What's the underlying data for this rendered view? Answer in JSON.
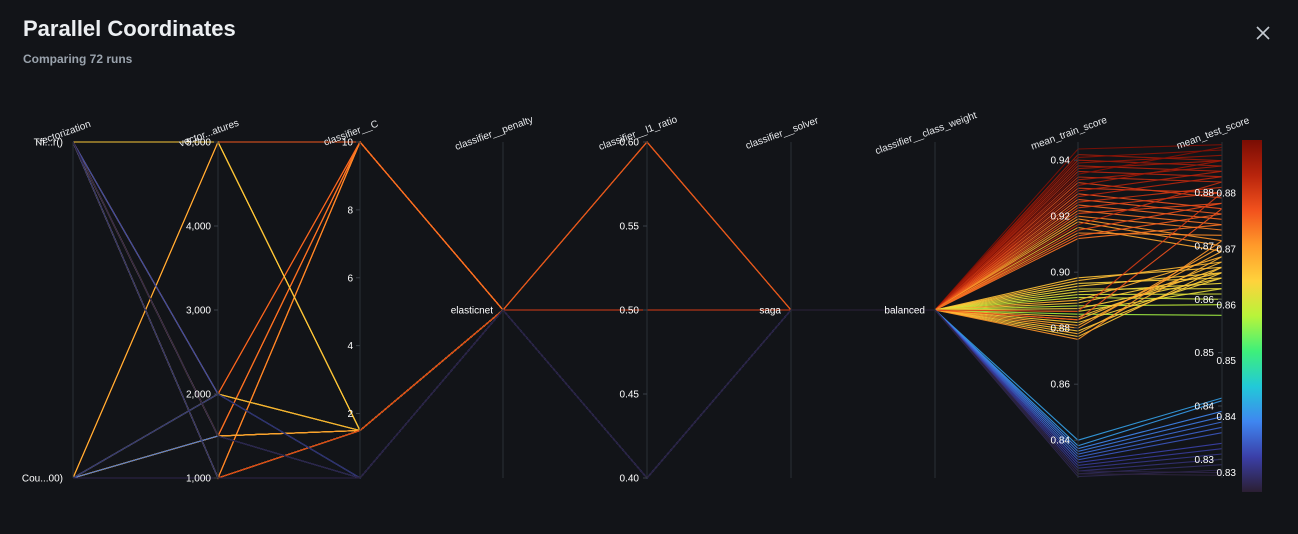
{
  "header": {
    "title": "Parallel Coordinates",
    "subtitle": "Comparing 72 runs"
  },
  "icons": {
    "close": "close-icon"
  },
  "chart_data": {
    "type": "parallel-coordinates",
    "axes": [
      {
        "name": "vectorization",
        "type": "categorical",
        "categories": [
          "Cou...00)",
          "Tfi...r()"
        ]
      },
      {
        "name": "vector...atures",
        "type": "numeric",
        "range": [
          1000,
          5000
        ],
        "ticks": [
          1000,
          2000,
          3000,
          4000,
          5000
        ],
        "tick_labels": [
          "1,000",
          "2,000",
          "3,000",
          "4,000",
          "5,000"
        ]
      },
      {
        "name": "classifier__C",
        "type": "numeric",
        "range": [
          0.1,
          10
        ],
        "ticks": [
          2,
          4,
          6,
          8,
          10
        ],
        "tick_labels": [
          "2",
          "4",
          "6",
          "8",
          "10"
        ]
      },
      {
        "name": "classifier__penalty",
        "type": "categorical",
        "categories": [
          "elasticnet"
        ]
      },
      {
        "name": "classifier__l1_ratio",
        "type": "numeric",
        "range": [
          0.4,
          0.6
        ],
        "ticks": [
          0.4,
          0.45,
          0.5,
          0.55,
          0.6
        ],
        "tick_labels": [
          "0.40",
          "0.45",
          "0.50",
          "0.55",
          "0.60"
        ]
      },
      {
        "name": "classifier__solver",
        "type": "categorical",
        "categories": [
          "saga"
        ]
      },
      {
        "name": "classifier__class_weight",
        "type": "categorical",
        "categories": [
          "balanced"
        ]
      },
      {
        "name": "mean_train_score",
        "type": "numeric",
        "range": [
          0.8265,
          0.9465
        ],
        "ticks": [
          0.84,
          0.86,
          0.88,
          0.9,
          0.92,
          0.94
        ],
        "tick_labels": [
          "0.84",
          "0.86",
          "0.88",
          "0.90",
          "0.92",
          "0.94"
        ]
      },
      {
        "name": "mean_test_score",
        "type": "numeric",
        "range": [
          0.8265,
          0.8895
        ],
        "ticks": [
          0.83,
          0.84,
          0.85,
          0.86,
          0.87,
          0.88
        ],
        "tick_labels": [
          "0.83",
          "0.84",
          "0.85",
          "0.86",
          "0.87",
          "0.88"
        ]
      }
    ],
    "color_by": "mean_test_score",
    "colorscale": [
      "#2b1f33",
      "#3b3fa8",
      "#3f86f0",
      "#22c9d8",
      "#3ef07a",
      "#b8f43a",
      "#ffd23c",
      "#ff9a2a",
      "#f2521d",
      "#b8240c",
      "#7a0d04"
    ],
    "colorbar": {
      "ticks": [
        0.83,
        0.84,
        0.85,
        0.86,
        0.87,
        0.88
      ],
      "tick_labels": [
        "0.83",
        "0.84",
        "0.85",
        "0.86",
        "0.87",
        "0.88"
      ],
      "range": [
        0.8265,
        0.8895
      ]
    },
    "runs": [
      [
        0,
        1000,
        10,
        0,
        0.5,
        0,
        0,
        0.944,
        0.889
      ],
      [
        1,
        5000,
        10,
        0,
        0.5,
        0,
        0,
        0.942,
        0.886
      ],
      [
        0,
        2000,
        10,
        0,
        0.5,
        0,
        0,
        0.941,
        0.888
      ],
      [
        1,
        1000,
        10,
        0,
        0.5,
        0,
        0,
        0.94,
        0.885
      ],
      [
        0,
        5000,
        10,
        0,
        0.5,
        0,
        0,
        0.939,
        0.887
      ],
      [
        1,
        2000,
        10,
        0,
        0.5,
        0,
        0,
        0.938,
        0.884
      ],
      [
        0,
        1500,
        10,
        0,
        0.5,
        0,
        0,
        0.937,
        0.886
      ],
      [
        1,
        1500,
        10,
        0,
        0.5,
        0,
        0,
        0.936,
        0.883
      ],
      [
        0,
        1000,
        10,
        0,
        0.5,
        0,
        0,
        0.935,
        0.8885
      ],
      [
        1,
        5000,
        10,
        0,
        0.5,
        0,
        0,
        0.934,
        0.882
      ],
      [
        0,
        2000,
        10,
        0,
        0.5,
        0,
        0,
        0.933,
        0.885
      ],
      [
        1,
        1000,
        10,
        0,
        0.5,
        0,
        0,
        0.932,
        0.879
      ],
      [
        0,
        5000,
        10,
        0,
        0.5,
        0,
        0,
        0.931,
        0.886
      ],
      [
        1,
        2000,
        10,
        0,
        0.5,
        0,
        0,
        0.93,
        0.88
      ],
      [
        0,
        1500,
        10,
        0,
        0.5,
        0,
        0,
        0.929,
        0.884
      ],
      [
        1,
        1500,
        10,
        0,
        0.5,
        0,
        0,
        0.928,
        0.877
      ],
      [
        0,
        1000,
        10,
        0,
        0.5,
        0,
        0,
        0.927,
        0.883
      ],
      [
        1,
        5000,
        10,
        0,
        0.5,
        0,
        0,
        0.926,
        0.876
      ],
      [
        0,
        2000,
        10,
        0,
        0.5,
        0,
        0,
        0.925,
        0.881
      ],
      [
        1,
        1000,
        10,
        0,
        0.5,
        0,
        0,
        0.924,
        0.875
      ],
      [
        0,
        5000,
        10,
        0,
        0.5,
        0,
        0,
        0.923,
        0.88
      ],
      [
        1,
        2000,
        10,
        0,
        0.5,
        0,
        0,
        0.922,
        0.874
      ],
      [
        0,
        1500,
        10,
        0,
        0.5,
        0,
        0,
        0.921,
        0.878
      ],
      [
        1,
        1500,
        10,
        0,
        0.5,
        0,
        0,
        0.92,
        0.873
      ],
      [
        0,
        1000,
        10,
        0,
        0.5,
        0,
        0,
        0.919,
        0.871
      ],
      [
        1,
        5000,
        1.5,
        0,
        0.6,
        0,
        0,
        0.918,
        0.87
      ],
      [
        0,
        1000,
        1.5,
        0,
        0.6,
        0,
        0,
        0.917,
        0.882
      ],
      [
        1,
        1500,
        1.5,
        0,
        0.6,
        0,
        0,
        0.916,
        0.869
      ],
      [
        0,
        2000,
        1.5,
        0,
        0.6,
        0,
        0,
        0.915,
        0.878
      ],
      [
        1,
        1000,
        10,
        0,
        0.5,
        0,
        0,
        0.914,
        0.872
      ],
      [
        0,
        5000,
        10,
        0,
        0.5,
        0,
        0,
        0.913,
        0.876
      ],
      [
        1,
        1500,
        10,
        0,
        0.5,
        0,
        0,
        0.912,
        0.874
      ],
      [
        0,
        1000,
        1.5,
        0,
        0.5,
        0,
        0,
        0.898,
        0.866
      ],
      [
        1,
        5000,
        1.5,
        0,
        0.5,
        0,
        0,
        0.897,
        0.867
      ],
      [
        0,
        1500,
        1.5,
        0,
        0.5,
        0,
        0,
        0.896,
        0.864
      ],
      [
        1,
        1000,
        1.5,
        0,
        0.5,
        0,
        0,
        0.895,
        0.865
      ],
      [
        0,
        2000,
        1.5,
        0,
        0.5,
        0,
        0,
        0.894,
        0.862
      ],
      [
        1,
        1500,
        1.5,
        0,
        0.5,
        0,
        0,
        0.893,
        0.863
      ],
      [
        0,
        1000,
        1.5,
        0,
        0.5,
        0,
        0,
        0.892,
        0.861
      ],
      [
        1,
        5000,
        1.5,
        0,
        0.5,
        0,
        0,
        0.891,
        0.86
      ],
      [
        0,
        1500,
        1.5,
        0,
        0.5,
        0,
        0,
        0.89,
        0.868
      ],
      [
        1,
        1000,
        1.5,
        0,
        0.5,
        0,
        0,
        0.889,
        0.865
      ],
      [
        0,
        2000,
        1.5,
        0,
        0.5,
        0,
        0,
        0.888,
        0.859
      ],
      [
        1,
        1000,
        1.5,
        0,
        0.5,
        0,
        0,
        0.887,
        0.864
      ],
      [
        0,
        1500,
        1.5,
        0,
        0.5,
        0,
        0,
        0.886,
        0.862
      ],
      [
        1,
        1000,
        1.5,
        0,
        0.5,
        0,
        0,
        0.885,
        0.857
      ],
      [
        0,
        5000,
        1.5,
        0,
        0.5,
        0,
        0,
        0.884,
        0.866
      ],
      [
        1,
        1500,
        1.5,
        0,
        0.5,
        0,
        0,
        0.883,
        0.867
      ],
      [
        0,
        1000,
        1.5,
        0,
        0.5,
        0,
        0,
        0.882,
        0.864
      ],
      [
        1,
        2000,
        1.5,
        0,
        0.5,
        0,
        0,
        0.881,
        0.869
      ],
      [
        0,
        1000,
        1.5,
        0,
        0.5,
        0,
        0,
        0.88,
        0.87
      ],
      [
        1,
        1500,
        1.5,
        0,
        0.5,
        0,
        0,
        0.879,
        0.865
      ],
      [
        0,
        1000,
        1.5,
        0,
        0.5,
        0,
        0,
        0.878,
        0.868
      ],
      [
        1,
        5000,
        1.5,
        0,
        0.5,
        0,
        0,
        0.877,
        0.866
      ],
      [
        0,
        1500,
        1.5,
        0,
        0.5,
        0,
        0,
        0.876,
        0.871
      ],
      [
        1,
        1000,
        1.5,
        0,
        0.5,
        0,
        0,
        0.883,
        0.877
      ],
      [
        0,
        1000,
        1.5,
        0,
        0.5,
        0,
        0,
        0.886,
        0.88
      ],
      [
        1,
        2000,
        0.1,
        0,
        0.4,
        0,
        0,
        0.84,
        0.8415
      ],
      [
        0,
        2000,
        0.1,
        0,
        0.4,
        0,
        0,
        0.838,
        0.841
      ],
      [
        1,
        1000,
        0.1,
        0,
        0.4,
        0,
        0,
        0.837,
        0.839
      ],
      [
        0,
        1500,
        0.1,
        0,
        0.4,
        0,
        0,
        0.836,
        0.838
      ],
      [
        1,
        1000,
        0.1,
        0,
        0.4,
        0,
        0,
        0.835,
        0.837
      ],
      [
        0,
        2000,
        0.1,
        0,
        0.4,
        0,
        0,
        0.834,
        0.836
      ],
      [
        1,
        1500,
        0.1,
        0,
        0.4,
        0,
        0,
        0.833,
        0.835
      ],
      [
        0,
        1000,
        0.1,
        0,
        0.4,
        0,
        0,
        0.832,
        0.833
      ],
      [
        1,
        2000,
        0.1,
        0,
        0.4,
        0,
        0,
        0.831,
        0.832
      ],
      [
        0,
        1000,
        0.1,
        0,
        0.4,
        0,
        0,
        0.83,
        0.831
      ],
      [
        1,
        1500,
        0.1,
        0,
        0.4,
        0,
        0,
        0.829,
        0.83
      ],
      [
        0,
        2000,
        0.1,
        0,
        0.4,
        0,
        0,
        0.828,
        0.829
      ],
      [
        1,
        1000,
        0.1,
        0,
        0.4,
        0,
        0,
        0.827,
        0.828
      ],
      [
        0,
        1000,
        0.1,
        0,
        0.4,
        0,
        0,
        0.829,
        0.8275
      ],
      [
        1,
        1500,
        0.1,
        0,
        0.4,
        0,
        0,
        0.828,
        0.827
      ]
    ]
  }
}
